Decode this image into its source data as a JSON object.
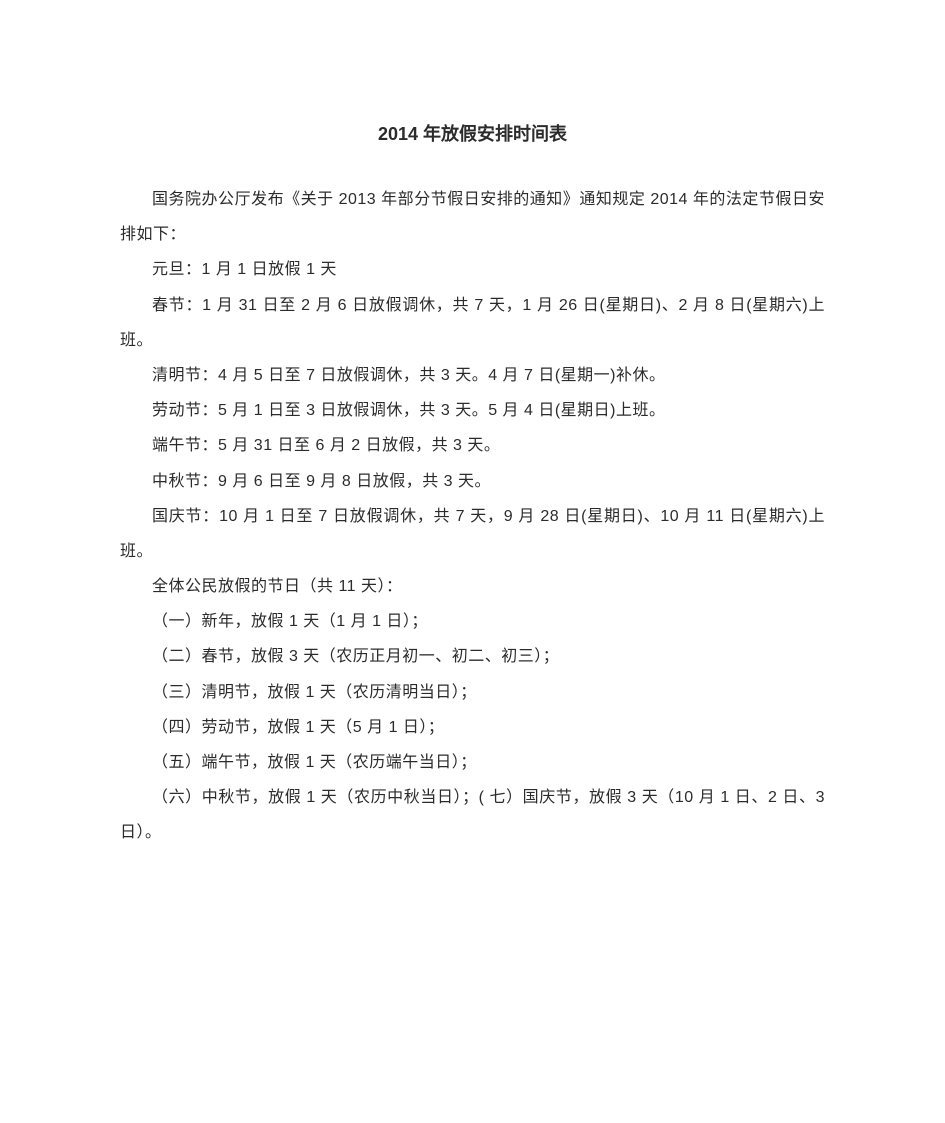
{
  "title": "2014 年放假安排时间表",
  "paragraphs": {
    "p1": "国务院办公厅发布《关于 2013 年部分节假日安排的通知》通知规定 2014 年的法定节假日安排如下：",
    "p2": "元旦：1 月 1 日放假 1 天",
    "p3": "春节：1 月 31 日至 2 月 6 日放假调休，共 7 天，1 月 26 日(星期日)、2 月 8 日(星期六)上班。",
    "p4": "清明节：4 月 5 日至 7 日放假调休，共 3 天。4 月 7 日(星期一)补休。",
    "p5": "劳动节：5 月 1 日至 3 日放假调休，共 3 天。5 月 4 日(星期日)上班。",
    "p6": "端午节：5 月 31 日至 6 月 2 日放假，共 3 天。",
    "p7": "中秋节：9 月 6 日至 9 月 8 日放假，共 3 天。",
    "p8": "国庆节：10 月 1 日至 7 日放假调休，共 7 天，9 月 28 日(星期日)、10 月 11 日(星期六)上班。",
    "p9": "全体公民放假的节日（共 11 天）：",
    "p10": "（一）新年，放假 1 天（1 月 1 日）；",
    "p11": "（二）春节，放假 3 天（农历正月初一、初二、初三）；",
    "p12": "（三）清明节，放假 1 天（农历清明当日）；",
    "p13": "（四）劳动节，放假 1 天（5 月 1 日）；",
    "p14": "（五）端午节，放假 1 天（农历端午当日）；",
    "p15": "（六）中秋节，放假 1 天（农历中秋当日）；( 七）国庆节，放假 3 天（10 月 1 日、2 日、3 日）。"
  },
  "style": {
    "background_color": "#ffffff",
    "text_color": "#2b2b2b",
    "title_fontsize": 18,
    "body_fontsize": 16,
    "line_height": 2.2,
    "font_family": "Microsoft YaHei"
  }
}
